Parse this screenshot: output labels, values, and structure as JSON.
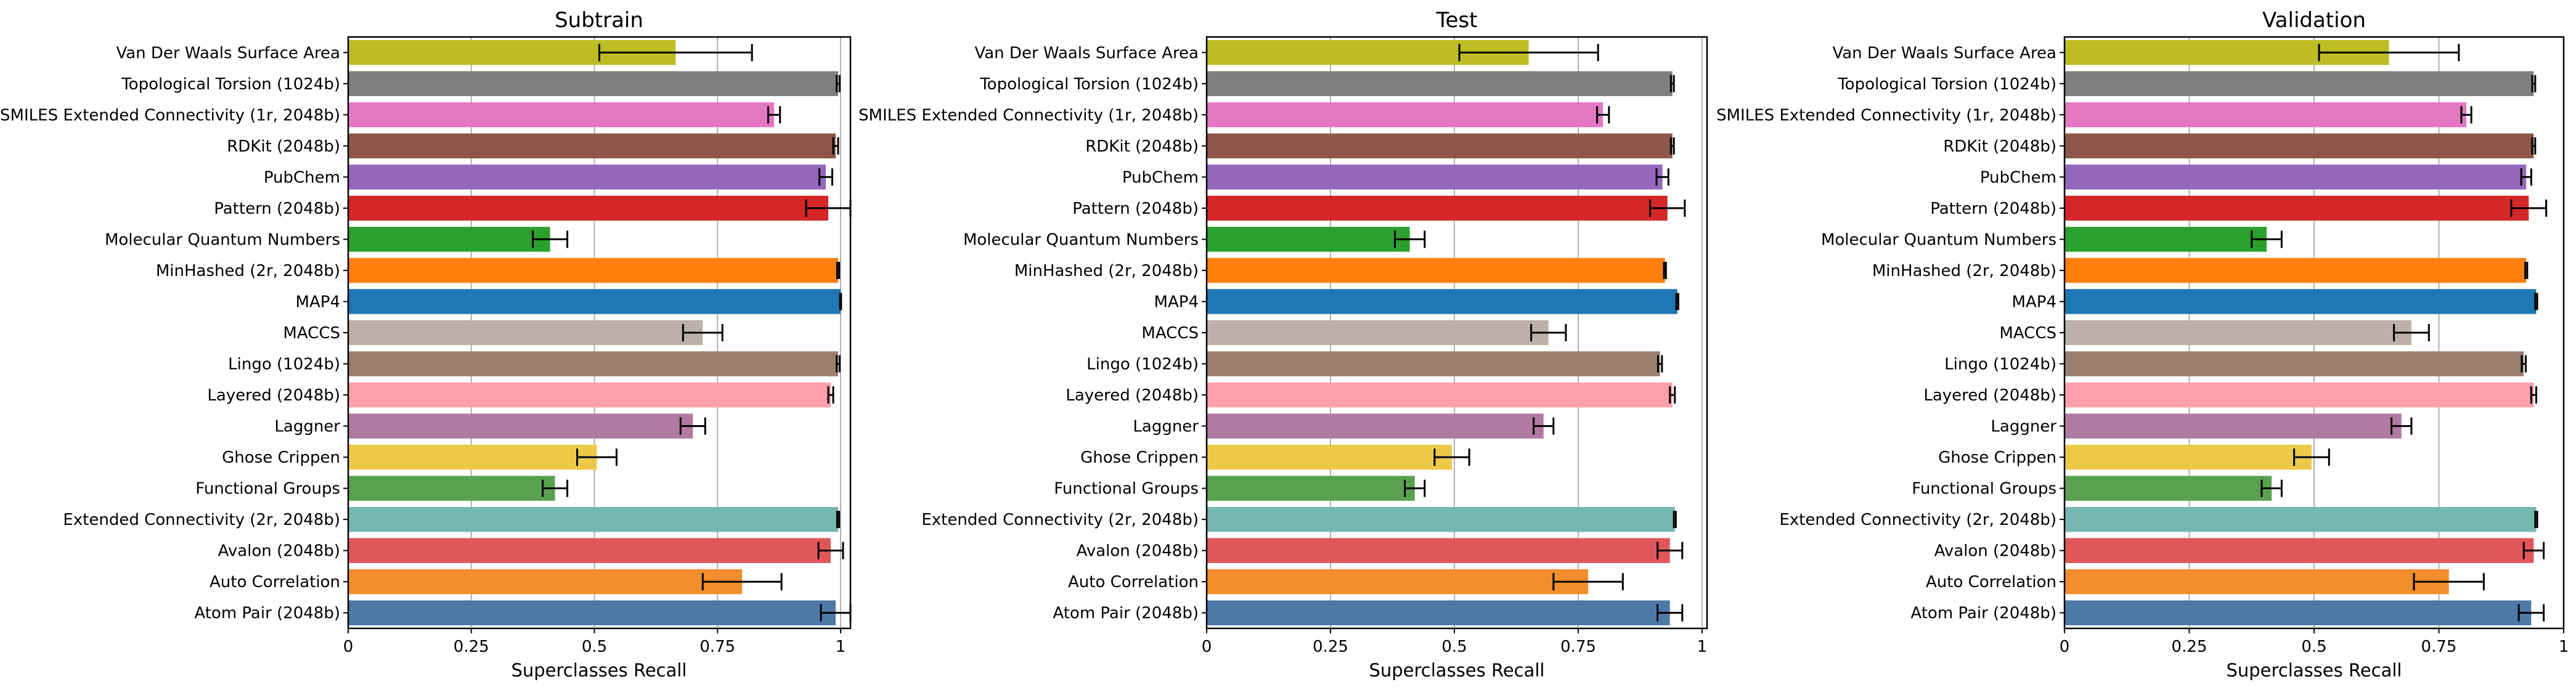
{
  "chart_data": [
    {
      "type": "bar",
      "orientation": "horizontal",
      "title": "Subtrain",
      "xlabel": "Superclasses Recall",
      "xlim": [
        0,
        1.02
      ],
      "xticks": [
        0,
        0.25,
        0.5,
        0.75,
        1
      ],
      "xtick_labels": [
        "0",
        "0.25",
        "0.5",
        "0.75",
        "1"
      ],
      "grid": "vertical",
      "categories": [
        "Van Der Waals Surface Area",
        "Topological Torsion (1024b)",
        "SMILES Extended Connectivity (1r, 2048b)",
        "RDKit (2048b)",
        "PubChem",
        "Pattern (2048b)",
        "Molecular Quantum Numbers",
        "MinHashed (2r, 2048b)",
        "MAP4",
        "MACCS",
        "Lingo (1024b)",
        "Layered (2048b)",
        "Laggner",
        "Ghose Crippen",
        "Functional Groups",
        "Extended Connectivity (2r, 2048b)",
        "Avalon (2048b)",
        "Auto Correlation",
        "Atom Pair (2048b)"
      ],
      "values": [
        0.665,
        0.995,
        0.865,
        0.99,
        0.97,
        0.975,
        0.41,
        0.995,
        1.0,
        0.72,
        0.995,
        0.98,
        0.7,
        0.505,
        0.42,
        0.995,
        0.98,
        0.8,
        0.99
      ],
      "errors": [
        0.155,
        0.003,
        0.012,
        0.005,
        0.013,
        0.045,
        0.035,
        0.002,
        0.001,
        0.04,
        0.003,
        0.005,
        0.025,
        0.04,
        0.025,
        0.002,
        0.025,
        0.08,
        0.03
      ],
      "colors": [
        "#bcbd22",
        "#7f7f7f",
        "#e377c2",
        "#8c564b",
        "#9467bd",
        "#d62728",
        "#2ca02c",
        "#ff7f0e",
        "#1f77b4",
        "#bdb0a9",
        "#9c7e6c",
        "#ffa0ab",
        "#b07aa1",
        "#edc948",
        "#59a14f",
        "#76b7b2",
        "#e15759",
        "#f28e2b",
        "#4e79a7"
      ]
    },
    {
      "type": "bar",
      "orientation": "horizontal",
      "title": "Test",
      "xlabel": "Superclasses Recall",
      "xlim": [
        0,
        1.01
      ],
      "xticks": [
        0,
        0.25,
        0.5,
        0.75,
        1
      ],
      "xtick_labels": [
        "0",
        "0.25",
        "0.5",
        "0.75",
        "1"
      ],
      "grid": "vertical",
      "categories": [
        "Van Der Waals Surface Area",
        "Topological Torsion (1024b)",
        "SMILES Extended Connectivity (1r, 2048b)",
        "RDKit (2048b)",
        "PubChem",
        "Pattern (2048b)",
        "Molecular Quantum Numbers",
        "MinHashed (2r, 2048b)",
        "MAP4",
        "MACCS",
        "Lingo (1024b)",
        "Layered (2048b)",
        "Laggner",
        "Ghose Crippen",
        "Functional Groups",
        "Extended Connectivity (2r, 2048b)",
        "Avalon (2048b)",
        "Auto Correlation",
        "Atom Pair (2048b)"
      ],
      "values": [
        0.65,
        0.94,
        0.8,
        0.94,
        0.92,
        0.93,
        0.41,
        0.925,
        0.95,
        0.69,
        0.915,
        0.94,
        0.68,
        0.495,
        0.42,
        0.945,
        0.935,
        0.77,
        0.935
      ],
      "errors": [
        0.14,
        0.003,
        0.012,
        0.003,
        0.012,
        0.035,
        0.03,
        0.002,
        0.002,
        0.035,
        0.004,
        0.005,
        0.02,
        0.035,
        0.02,
        0.002,
        0.025,
        0.07,
        0.025
      ],
      "colors": [
        "#bcbd22",
        "#7f7f7f",
        "#e377c2",
        "#8c564b",
        "#9467bd",
        "#d62728",
        "#2ca02c",
        "#ff7f0e",
        "#1f77b4",
        "#bdb0a9",
        "#9c7e6c",
        "#ffa0ab",
        "#b07aa1",
        "#edc948",
        "#59a14f",
        "#76b7b2",
        "#e15759",
        "#f28e2b",
        "#4e79a7"
      ]
    },
    {
      "type": "bar",
      "orientation": "horizontal",
      "title": "Validation",
      "xlabel": "Superclasses Recall",
      "xlim": [
        0,
        1.0
      ],
      "xticks": [
        0,
        0.25,
        0.5,
        0.75,
        1
      ],
      "xtick_labels": [
        "0",
        "0.25",
        "0.5",
        "0.75",
        "1"
      ],
      "grid": "vertical",
      "categories": [
        "Van Der Waals Surface Area",
        "Topological Torsion (1024b)",
        "SMILES Extended Connectivity (1r, 2048b)",
        "RDKit (2048b)",
        "PubChem",
        "Pattern (2048b)",
        "Molecular Quantum Numbers",
        "MinHashed (2r, 2048b)",
        "MAP4",
        "MACCS",
        "Lingo (1024b)",
        "Layered (2048b)",
        "Laggner",
        "Ghose Crippen",
        "Functional Groups",
        "Extended Connectivity (2r, 2048b)",
        "Avalon (2048b)",
        "Auto Correlation",
        "Atom Pair (2048b)"
      ],
      "values": [
        0.65,
        0.94,
        0.805,
        0.94,
        0.925,
        0.93,
        0.405,
        0.925,
        0.945,
        0.695,
        0.92,
        0.94,
        0.675,
        0.495,
        0.415,
        0.945,
        0.94,
        0.77,
        0.935
      ],
      "errors": [
        0.14,
        0.003,
        0.01,
        0.003,
        0.01,
        0.035,
        0.03,
        0.002,
        0.002,
        0.035,
        0.004,
        0.005,
        0.02,
        0.035,
        0.02,
        0.002,
        0.02,
        0.07,
        0.025
      ],
      "colors": [
        "#bcbd22",
        "#7f7f7f",
        "#e377c2",
        "#8c564b",
        "#9467bd",
        "#d62728",
        "#2ca02c",
        "#ff7f0e",
        "#1f77b4",
        "#bdb0a9",
        "#9c7e6c",
        "#ffa0ab",
        "#b07aa1",
        "#edc948",
        "#59a14f",
        "#76b7b2",
        "#e15759",
        "#f28e2b",
        "#4e79a7"
      ]
    }
  ]
}
